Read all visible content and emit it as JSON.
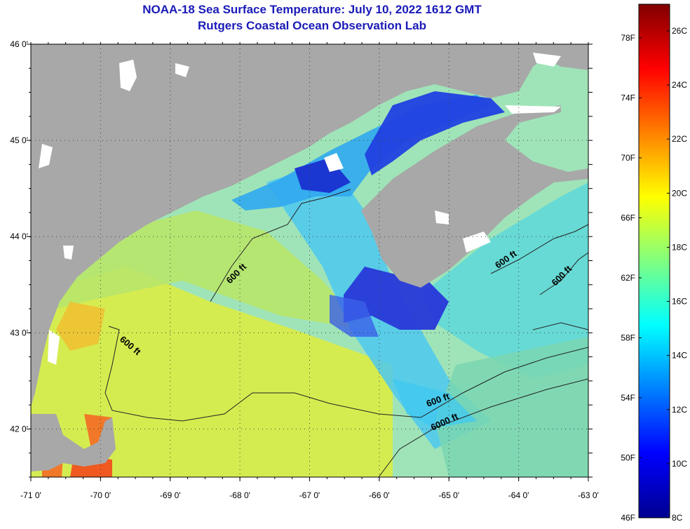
{
  "header": {
    "title": "NOAA-18 Sea Surface Temperature:  July 10, 2022 1612 GMT",
    "subtitle": "Rutgers Coastal Ocean Observation Lab"
  },
  "map": {
    "lon_range": [
      -71,
      -63
    ],
    "lat_range": [
      41.5,
      46
    ],
    "x_ticks": [
      {
        "value": -71,
        "label": "-71 0'"
      },
      {
        "value": -70,
        "label": "-70 0'"
      },
      {
        "value": -69,
        "label": "-69 0'"
      },
      {
        "value": -68,
        "label": "-68 0'"
      },
      {
        "value": -67,
        "label": "-67 0'"
      },
      {
        "value": -66,
        "label": "-66 0'"
      },
      {
        "value": -65,
        "label": "-65 0'"
      },
      {
        "value": -64,
        "label": "-64 0'"
      },
      {
        "value": -63,
        "label": "-63 0'"
      }
    ],
    "y_ticks": [
      {
        "value": 46,
        "label": "46 0'"
      },
      {
        "value": 45,
        "label": "45 0'"
      },
      {
        "value": 44,
        "label": "44 0'"
      },
      {
        "value": 43,
        "label": "43 0'"
      },
      {
        "value": 42,
        "label": "42 0'"
      }
    ],
    "contour_labels": [
      "600 ft",
      "600 ft",
      "600 ft",
      "600 ft",
      "600 ft",
      "6000 ft"
    ],
    "colors": {
      "land": "#a8a8a8",
      "cloud": "#ffffff",
      "cold_water": "#1e2ed8",
      "cool_water": "#30b8f0",
      "mid_water": "#40e0c0",
      "warm_water": "#c8e840",
      "hot_water": "#f07020"
    }
  },
  "colorbar": {
    "fahrenheit_labels": [
      "78F",
      "74F",
      "70F",
      "66F",
      "62F",
      "58F",
      "54F",
      "50F",
      "46F"
    ],
    "celsius_labels": [
      "26C",
      "24C",
      "22C",
      "20C",
      "18C",
      "16C",
      "14C",
      "12C",
      "10C",
      "8C"
    ],
    "stops": [
      "#000090",
      "#0000ff",
      "#0080ff",
      "#00ffff",
      "#80ff80",
      "#ffff00",
      "#ff8000",
      "#ff0000",
      "#800000"
    ]
  }
}
